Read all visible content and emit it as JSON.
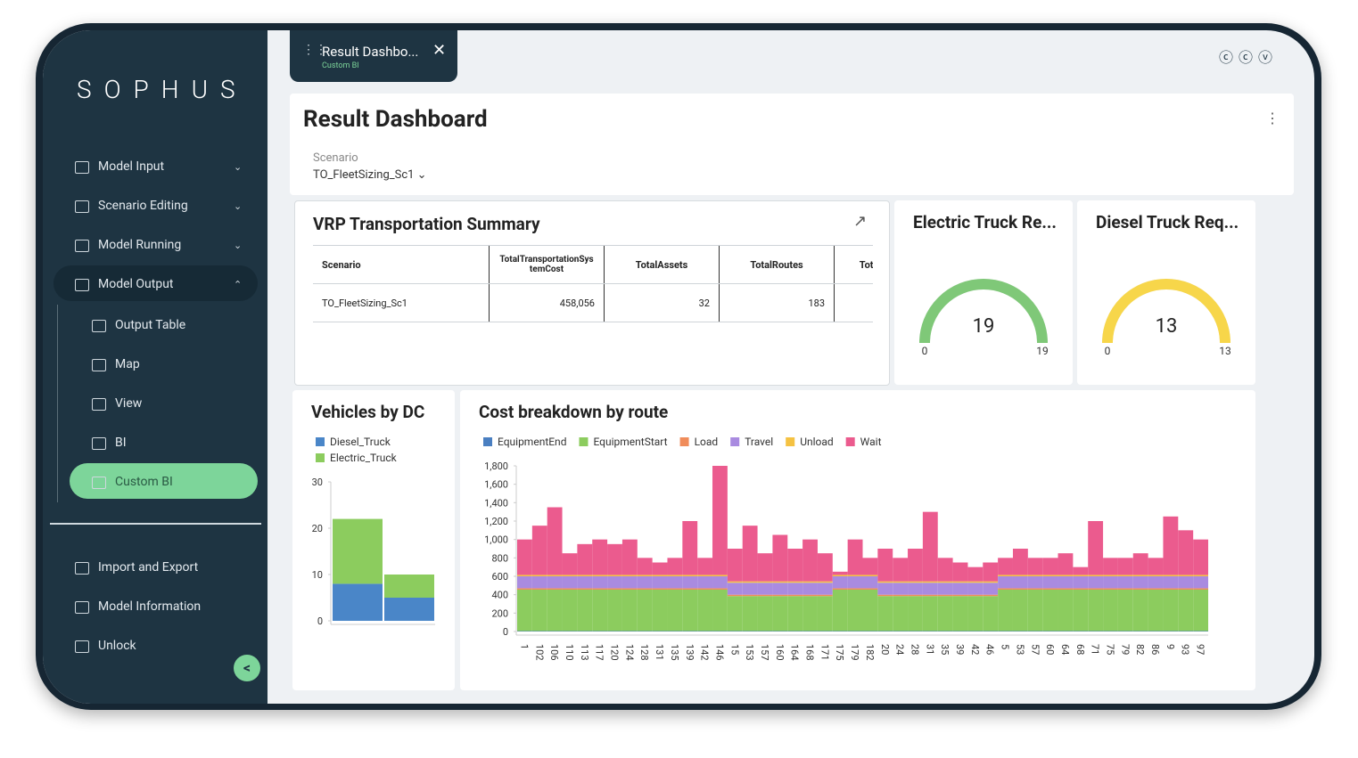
{
  "sidebar": {
    "logo": "SOPHUS",
    "items": [
      "Model Input",
      "Scenario Editing",
      "Model Running",
      "Model Output"
    ],
    "subitems": [
      "Output Table",
      "Map",
      "View",
      "BI",
      "Custom BI"
    ],
    "bottom": [
      "Import and Export",
      "Model Information",
      "Unlock"
    ]
  },
  "tab": {
    "title": "Result Dashbo...",
    "subtitle": "Custom BI"
  },
  "header": {
    "title": "Result Dashboard",
    "scenario_label": "Scenario",
    "scenario_value": "TO_FleetSizing_Sc1"
  },
  "table": {
    "title": "VRP Transportation Summary",
    "columns": [
      "Scenario",
      "TotalTransportationSystemCost",
      "TotalAssets",
      "TotalRoutes",
      "Total"
    ],
    "rows": [
      [
        "TO_FleetSizing_Sc1",
        "458,056",
        "32",
        "183"
      ]
    ]
  },
  "chart_data": [
    {
      "type": "gauge",
      "title": "Electric Truck Re...",
      "value": 19,
      "min": 0,
      "max": 19,
      "color": "#7fc878"
    },
    {
      "type": "gauge",
      "title": "Diesel Truck Req...",
      "value": 13,
      "min": 0,
      "max": 13,
      "color": "#f7d64a"
    },
    {
      "type": "bar",
      "stacked": true,
      "title": "Vehicles by DC",
      "legend": "top-left",
      "categories": [
        null,
        null
      ],
      "series": [
        {
          "name": "Diesel_Truck",
          "color": "#4a86c8",
          "values": [
            8,
            5
          ]
        },
        {
          "name": "Electric_Truck",
          "color": "#8ccc5e",
          "values": [
            14,
            5
          ]
        }
      ],
      "ylim": [
        0,
        30
      ],
      "yticks": [
        0,
        10,
        20,
        30
      ]
    },
    {
      "type": "bar",
      "stacked": true,
      "title": "Cost breakdown by route",
      "legend": "top",
      "categories": [
        "1",
        "102",
        "106",
        "110",
        "113",
        "117",
        "120",
        "124",
        "128",
        "131",
        "135",
        "139",
        "142",
        "146",
        "15",
        "153",
        "157",
        "160",
        "164",
        "168",
        "171",
        "175",
        "179",
        "182",
        "20",
        "24",
        "28",
        "31",
        "35",
        "39",
        "42",
        "46",
        "5",
        "53",
        "57",
        "60",
        "64",
        "68",
        "71",
        "75",
        "79",
        "82",
        "86",
        "9",
        "93",
        "97"
      ],
      "series": [
        {
          "name": "EquipmentEnd",
          "color": "#4a7fc1",
          "values": [
            5,
            5,
            5,
            5,
            5,
            5,
            5,
            5,
            5,
            5,
            5,
            5,
            5,
            5,
            5,
            5,
            5,
            5,
            5,
            5,
            5,
            5,
            5,
            5,
            5,
            5,
            5,
            5,
            5,
            5,
            5,
            5,
            5,
            5,
            5,
            5,
            5,
            5,
            5,
            5,
            5,
            5,
            5,
            5,
            5,
            5
          ]
        },
        {
          "name": "EquipmentStart",
          "color": "#8ccc5e",
          "values": [
            450,
            450,
            450,
            450,
            450,
            450,
            450,
            450,
            450,
            450,
            450,
            450,
            450,
            450,
            380,
            380,
            380,
            380,
            380,
            380,
            380,
            450,
            450,
            450,
            380,
            380,
            380,
            380,
            380,
            380,
            380,
            380,
            450,
            450,
            450,
            450,
            450,
            450,
            450,
            450,
            450,
            450,
            450,
            450,
            450,
            450
          ]
        },
        {
          "name": "Load",
          "color": "#f08c5a",
          "values": [
            15,
            15,
            15,
            15,
            15,
            15,
            15,
            15,
            15,
            15,
            15,
            15,
            15,
            15,
            15,
            15,
            15,
            15,
            15,
            15,
            15,
            15,
            15,
            15,
            15,
            15,
            15,
            15,
            15,
            15,
            15,
            15,
            15,
            15,
            15,
            15,
            15,
            15,
            15,
            15,
            15,
            15,
            15,
            15,
            15,
            15
          ]
        },
        {
          "name": "Travel",
          "color": "#a98be0",
          "values": [
            130,
            130,
            130,
            130,
            130,
            130,
            130,
            130,
            130,
            130,
            130,
            130,
            130,
            130,
            130,
            130,
            130,
            130,
            130,
            130,
            130,
            130,
            130,
            130,
            130,
            130,
            130,
            130,
            130,
            130,
            130,
            130,
            130,
            130,
            130,
            130,
            130,
            130,
            130,
            130,
            130,
            130,
            130,
            130,
            130,
            130
          ]
        },
        {
          "name": "Unload",
          "color": "#f5c242",
          "values": [
            15,
            15,
            15,
            15,
            15,
            15,
            15,
            15,
            15,
            15,
            15,
            15,
            15,
            15,
            15,
            15,
            15,
            15,
            15,
            15,
            15,
            15,
            15,
            15,
            15,
            15,
            15,
            15,
            15,
            15,
            15,
            15,
            15,
            15,
            15,
            15,
            15,
            15,
            15,
            15,
            15,
            15,
            15,
            15,
            15,
            15
          ]
        },
        {
          "name": "Wait",
          "color": "#eb5b8e",
          "values": [
            385,
            535,
            735,
            235,
            335,
            385,
            335,
            385,
            185,
            135,
            185,
            585,
            185,
            1185,
            355,
            605,
            305,
            505,
            355,
            455,
            305,
            35,
            385,
            185,
            355,
            255,
            355,
            755,
            255,
            205,
            155,
            205,
            185,
            285,
            185,
            185,
            235,
            85,
            585,
            185,
            185,
            235,
            185,
            635,
            485,
            385
          ]
        }
      ],
      "ylim": [
        0,
        1800
      ],
      "yticks": [
        0,
        200,
        400,
        600,
        800,
        {
          "value": 1000,
          "label": "1,000"
        },
        {
          "value": 1200,
          "label": "1,200"
        },
        {
          "value": 1400,
          "label": "1,400"
        },
        {
          "value": 1600,
          "label": "1,600"
        },
        {
          "value": 1800,
          "label": "1,800"
        }
      ]
    }
  ]
}
